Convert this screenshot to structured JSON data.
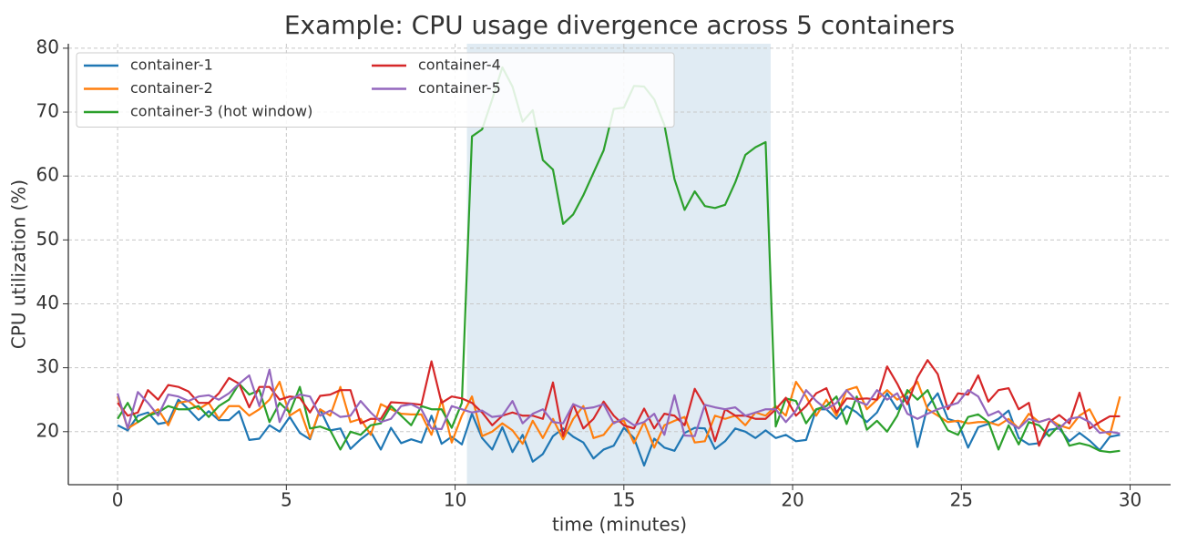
{
  "chart_data": {
    "type": "line",
    "title": "Example: CPU usage divergence across 5 containers",
    "xlabel": "time (minutes)",
    "ylabel": "CPU utilization (%)",
    "xlim": [
      -1.46,
      31.2
    ],
    "ylim": [
      11.7,
      80.7
    ],
    "xticks": [
      0,
      5,
      10,
      15,
      20,
      25,
      30
    ],
    "yticks": [
      20,
      30,
      40,
      50,
      60,
      70,
      80
    ],
    "grid": true,
    "legend": "upper left",
    "legend_ncol": 2,
    "highlight_xrange": [
      10.35,
      19.35
    ],
    "highlight_color": "#dbe8f1",
    "x": [
      0,
      0.3,
      0.6,
      0.9,
      1.2,
      1.5,
      1.8,
      2.1,
      2.4,
      2.7,
      3,
      3.3,
      3.6,
      3.9,
      4.2,
      4.5,
      4.8,
      5.1,
      5.4,
      5.7,
      6,
      6.3,
      6.6,
      6.9,
      7.2,
      7.5,
      7.8,
      8.1,
      8.4,
      8.7,
      9,
      9.3,
      9.6,
      9.9,
      10.2,
      10.5,
      10.8,
      11.1,
      11.4,
      11.7,
      12,
      12.3,
      12.6,
      12.9,
      13.2,
      13.5,
      13.8,
      14.1,
      14.4,
      14.7,
      15,
      15.3,
      15.6,
      15.9,
      16.2,
      16.5,
      16.8,
      17.1,
      17.4,
      17.7,
      18,
      18.3,
      18.6,
      18.9,
      19.2,
      19.5,
      19.8,
      20.1,
      20.4,
      20.7,
      21,
      21.3,
      21.6,
      21.9,
      22.2,
      22.5,
      22.8,
      23.1,
      23.4,
      23.7,
      24,
      24.3,
      24.6,
      24.9,
      25.2,
      25.5,
      25.8,
      26.1,
      26.4,
      26.7,
      27,
      27.3,
      27.6,
      27.9,
      28.2,
      28.5,
      28.8,
      29.1,
      29.4,
      29.7
    ],
    "series": [
      {
        "name": "container-1",
        "color": "#1f77b4",
        "values": [
          21,
          20.2,
          22.5,
          23,
          21.2,
          21.5,
          25,
          23.5,
          21.8,
          23.2,
          21.8,
          21.8,
          23.2,
          18.7,
          18.9,
          21,
          20,
          22.3,
          19.8,
          18.8,
          23.5,
          20.2,
          20.5,
          17.3,
          18.8,
          20,
          17.2,
          20.6,
          18.2,
          18.8,
          18.3,
          22.5,
          18.1,
          19.2,
          18,
          22.8,
          19,
          17.2,
          20.7,
          16.8,
          19.5,
          15.3,
          16.5,
          19.3,
          20.5,
          19.2,
          18.3,
          15.8,
          17.2,
          17.8,
          20.6,
          19,
          14.7,
          18.9,
          17.5,
          17,
          19.8,
          20.6,
          20.5,
          17.3,
          18.5,
          20.5,
          20,
          19,
          20.2,
          19,
          19.5,
          18.5,
          18.7,
          23.5,
          23.5,
          22,
          24,
          23,
          21.5,
          23,
          26,
          23.5,
          25.5,
          17.6,
          24,
          26,
          22,
          21.5,
          17.5,
          20.7,
          21.2,
          22,
          23.3,
          19,
          18,
          18.2,
          20.3,
          20.5,
          18.5,
          19.8,
          18.6,
          17.1,
          19.2,
          19.5
        ]
      },
      {
        "name": "container-2",
        "color": "#ff7f0e",
        "values": [
          25.5,
          20.5,
          21.5,
          22.5,
          23.5,
          21,
          24.5,
          24.8,
          23.5,
          24.5,
          22,
          24,
          24,
          22.5,
          23.5,
          25,
          27.8,
          22.5,
          23.5,
          19,
          23.5,
          22.5,
          27,
          21.5,
          22,
          19.5,
          24.3,
          23.5,
          22.8,
          22.7,
          22.7,
          19.5,
          25,
          18.3,
          22.5,
          25.5,
          19.3,
          20,
          21.3,
          20.2,
          18.1,
          21.7,
          19,
          22,
          18.8,
          22,
          24,
          19,
          19.5,
          21.5,
          21.7,
          18.2,
          21.5,
          17.5,
          21,
          21.7,
          22.3,
          18.3,
          18.5,
          22.5,
          22,
          22.5,
          21,
          23,
          22.5,
          24,
          22.5,
          27.8,
          25.5,
          22.5,
          25,
          22.5,
          26.5,
          27,
          23.5,
          25,
          26.5,
          25,
          26,
          27.8,
          23.5,
          22.5,
          21.5,
          21.7,
          21.3,
          21.5,
          21.5,
          21,
          22,
          20.5,
          22.8,
          21.5,
          22,
          21,
          20.5,
          22.5,
          23.5,
          20.5,
          19.5,
          25.5
        ]
      },
      {
        "name": "container-3 (hot window)",
        "color": "#2ca02c",
        "values": [
          22,
          24.5,
          21.5,
          22.5,
          23,
          24,
          23.5,
          23.5,
          24,
          22.3,
          24,
          25,
          27.5,
          25.8,
          26.5,
          21.5,
          24.5,
          23,
          27,
          20.5,
          20.8,
          20.2,
          17.2,
          20,
          19.5,
          21,
          21.3,
          24,
          22.5,
          21,
          24,
          23.5,
          23.5,
          20.6,
          24.5,
          66.2,
          67.3,
          72,
          77,
          74,
          68.5,
          70.3,
          62.5,
          61,
          52.5,
          54,
          57,
          60.5,
          64,
          70.5,
          70.7,
          74.1,
          74,
          72,
          68,
          59.5,
          54.7,
          57.6,
          55.3,
          55,
          55.5,
          59,
          63.3,
          64.5,
          65.3,
          20.8,
          25.2,
          24.8,
          21.3,
          23.5,
          24,
          25.5,
          21.2,
          25.5,
          20.3,
          21.7,
          20,
          22.5,
          26.5,
          25,
          26.5,
          23,
          20.2,
          19.5,
          22.3,
          22.7,
          21.5,
          17.2,
          21,
          18,
          21.5,
          21,
          19.3,
          21,
          17.8,
          18.2,
          17.8,
          17,
          16.8,
          17
        ]
      },
      {
        "name": "container-4",
        "color": "#d62728",
        "values": [
          24.5,
          22.5,
          23,
          26.5,
          25,
          27.3,
          27,
          26.3,
          24.5,
          24.5,
          26,
          28.4,
          27.5,
          23.8,
          27,
          27,
          25,
          25.5,
          25.3,
          23,
          25.6,
          25.8,
          26.5,
          26.5,
          21.3,
          22,
          22,
          24.6,
          24.5,
          24.4,
          24.2,
          31,
          24.5,
          25.5,
          25.2,
          24.5,
          23,
          21,
          22.5,
          23,
          22.5,
          22.5,
          22,
          27.7,
          19.3,
          24.3,
          20.5,
          22,
          24.7,
          22.5,
          21,
          20.5,
          23.6,
          20.5,
          22.8,
          22.5,
          21,
          26.7,
          24,
          18.5,
          23.5,
          22.5,
          22.5,
          22,
          22,
          23.5,
          25.3,
          22.5,
          24,
          26,
          26.8,
          23,
          25.2,
          25.1,
          25.2,
          25,
          30.2,
          27.5,
          24.3,
          28.5,
          31.2,
          29,
          23.5,
          26,
          25.8,
          28.8,
          24.7,
          26.5,
          26.8,
          23.5,
          24.5,
          17.8,
          21.5,
          22.6,
          21.3,
          26.1,
          20.5,
          21.5,
          22.4,
          22.4
        ]
      },
      {
        "name": "container-5",
        "color": "#9467bd",
        "values": [
          26,
          20.5,
          26.2,
          24.5,
          22.5,
          25.8,
          25.5,
          24.8,
          25.5,
          25.7,
          25,
          26,
          27.5,
          28.8,
          24,
          29.7,
          21.5,
          25,
          25.8,
          25.5,
          22.5,
          23.3,
          22.3,
          22.5,
          24.8,
          23,
          21.5,
          22,
          24,
          24.3,
          23.5,
          20.5,
          20.4,
          24,
          23.5,
          23,
          23.3,
          22.3,
          22.5,
          24.8,
          21.3,
          22.8,
          23.5,
          21.5,
          21.3,
          24.3,
          23.6,
          23.8,
          24.3,
          21.3,
          22.1,
          21,
          21.5,
          22.8,
          19.5,
          25.7,
          19.4,
          19.3,
          24.2,
          23.8,
          23.5,
          23.8,
          22.5,
          23,
          23.5,
          23.5,
          21.5,
          23.3,
          26.5,
          24.8,
          23.5,
          24.5,
          26.5,
          24.8,
          24.2,
          26.5,
          25,
          26,
          22.8,
          22,
          22.8,
          23.5,
          24,
          24.5,
          26.5,
          25.5,
          22.5,
          23.2,
          21.5,
          20.5,
          22,
          21.5,
          22,
          20.5,
          22,
          22.3,
          21.5,
          19.8,
          20,
          19.7
        ]
      }
    ]
  }
}
